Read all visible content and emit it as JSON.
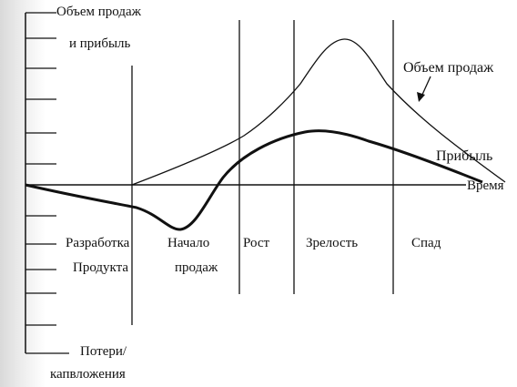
{
  "diagram": {
    "y_axis_label_line1": "Объем продаж",
    "y_axis_label_line2": "и прибыль",
    "y_axis_negative_line1": "Потери/",
    "y_axis_negative_line2": "капвложения",
    "x_axis_label": "Время",
    "series": {
      "sales": "Объем продаж",
      "profit": "Прибыль"
    },
    "stages": [
      {
        "line1": "Разработка",
        "line2": "Продукта"
      },
      {
        "line1": "Начало",
        "line2": "продаж"
      },
      {
        "line1": "Рост",
        "line2": ""
      },
      {
        "line1": "Зрелость",
        "line2": ""
      },
      {
        "line1": "Спад",
        "line2": ""
      }
    ]
  },
  "colors": {
    "line": "#111111",
    "bleed": "#dcdcdc"
  }
}
